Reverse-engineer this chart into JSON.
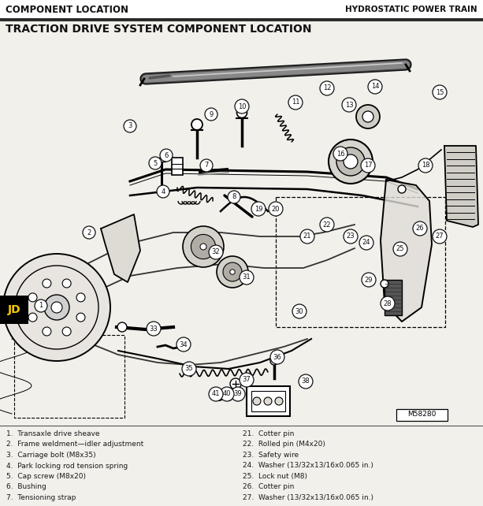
{
  "header_left": "COMPONENT LOCATION",
  "header_right": "HYDROSTATIC POWER TRAIN",
  "title": "TRACTION DRIVE SYSTEM COMPONENT LOCATION",
  "diagram_ref": "M58280",
  "bg_color": "#f2f0eb",
  "diagram_bg": "#f2f0eb",
  "left_col_items": [
    "1.  Transaxle drive sheave",
    "2.  Frame weldment—idler adjustment",
    "3.  Carriage bolt (M8x35)",
    "4.  Park locking rod tension spring",
    "5.  Cap screw (M8x20)",
    "6.  Bushing",
    "7.  Tensioning strap"
  ],
  "right_col_items": [
    "21.  Cotter pin",
    "22.  Rolled pin (M4x20)",
    "23.  Safety wire",
    "24.  Washer (13/32x13/16x0.065 in.)",
    "25.  Lock nut (M8)",
    "26.  Cotter pin",
    "27.  Washer (13/32x13/16x0.065 in.)"
  ],
  "text_color": "#1a1a1a",
  "callout_color": "#1a1a1a",
  "header_line_color": "#333333"
}
